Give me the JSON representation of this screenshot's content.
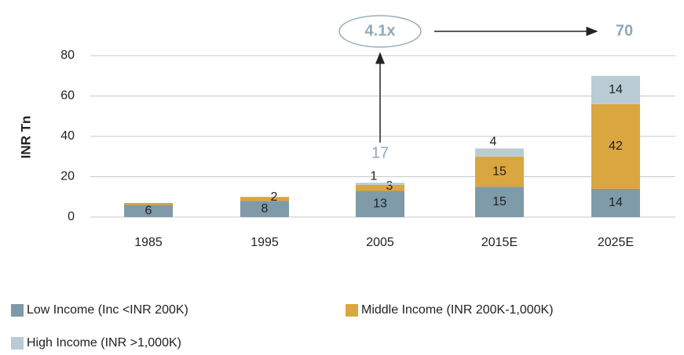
{
  "chart_data": {
    "type": "stacked_bar",
    "y_axis_label": "INR Tn",
    "categories": [
      "1985",
      "1995",
      "2005",
      "2015E",
      "2025E"
    ],
    "series": [
      {
        "name": "Low Income (Inc <INR 200K)",
        "color": "#7f9aa8",
        "values": [
          6,
          8,
          13,
          15,
          14
        ],
        "value_labels": [
          "6",
          "8",
          "13",
          "15",
          "14"
        ]
      },
      {
        "name": "Middle Income (INR 200K-1,000K)",
        "color": "#d9a640",
        "values": [
          1,
          2,
          3,
          15,
          42
        ],
        "value_labels": [
          null,
          "2",
          "3",
          "15",
          "42"
        ]
      },
      {
        "name": "High Income (INR >1,000K)",
        "color": "#b9ccd5",
        "values": [
          0,
          0,
          1,
          4,
          14
        ],
        "value_labels": [
          null,
          null,
          "1",
          "4",
          "14"
        ]
      }
    ],
    "totals": [
      null,
      null,
      17,
      null,
      70
    ],
    "growth_label": "4.1x",
    "ylim": [
      0,
      80
    ],
    "yticks": [
      0,
      20,
      40,
      60,
      80
    ],
    "grid": true
  }
}
